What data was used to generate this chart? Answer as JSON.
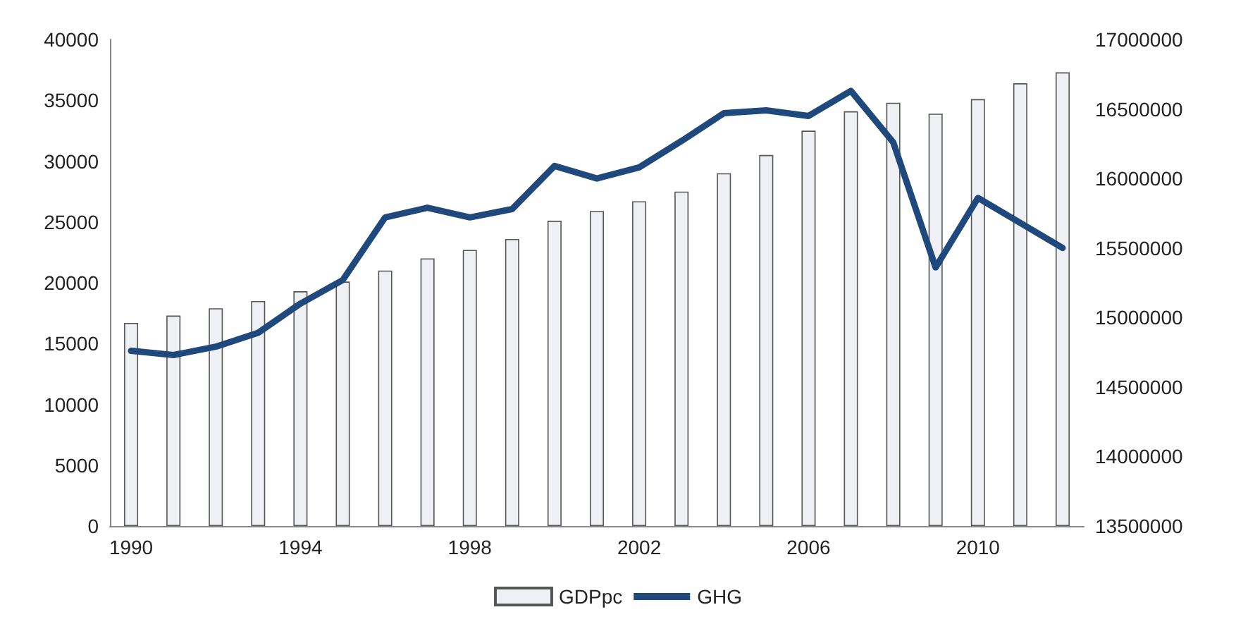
{
  "chart_data": {
    "type": "bar",
    "categories": [
      "1990",
      null,
      null,
      null,
      "1994",
      null,
      null,
      null,
      "1998",
      null,
      null,
      null,
      "2002",
      null,
      null,
      null,
      "2006",
      null,
      null,
      null,
      "2010",
      null,
      null
    ],
    "series": [
      {
        "name": "GDPpc",
        "color": "#eef0f4",
        "values": [
          16700,
          17300,
          17900,
          18500,
          19300,
          20100,
          21000,
          22000,
          22700,
          23600,
          25100,
          25900,
          26700,
          27500,
          29000,
          30500,
          32500,
          34100,
          34800,
          33900,
          35100,
          36400,
          37300
        ]
      },
      {
        "name": "GHG",
        "type": "line",
        "axis": "y2",
        "color": "#1f497d",
        "values": [
          14760000,
          14730000,
          14790000,
          14890000,
          15100000,
          15270000,
          15720000,
          15790000,
          15720000,
          15780000,
          16090000,
          16000000,
          16080000,
          16270000,
          16470000,
          16490000,
          16450000,
          16630000,
          16260000,
          15360000,
          15860000,
          15680000,
          15500000
        ]
      }
    ],
    "ylim": [
      0,
      40000
    ],
    "yticks": [
      0,
      5000,
      10000,
      15000,
      20000,
      25000,
      30000,
      35000,
      40000
    ],
    "y2lim": [
      13500000,
      17000000
    ],
    "y2ticks": [
      13500000,
      14000000,
      14500000,
      15000000,
      15500000,
      16000000,
      16500000,
      17000000
    ],
    "legend": "bottom",
    "grid": false,
    "marker": "none",
    "line_style": "solid"
  }
}
